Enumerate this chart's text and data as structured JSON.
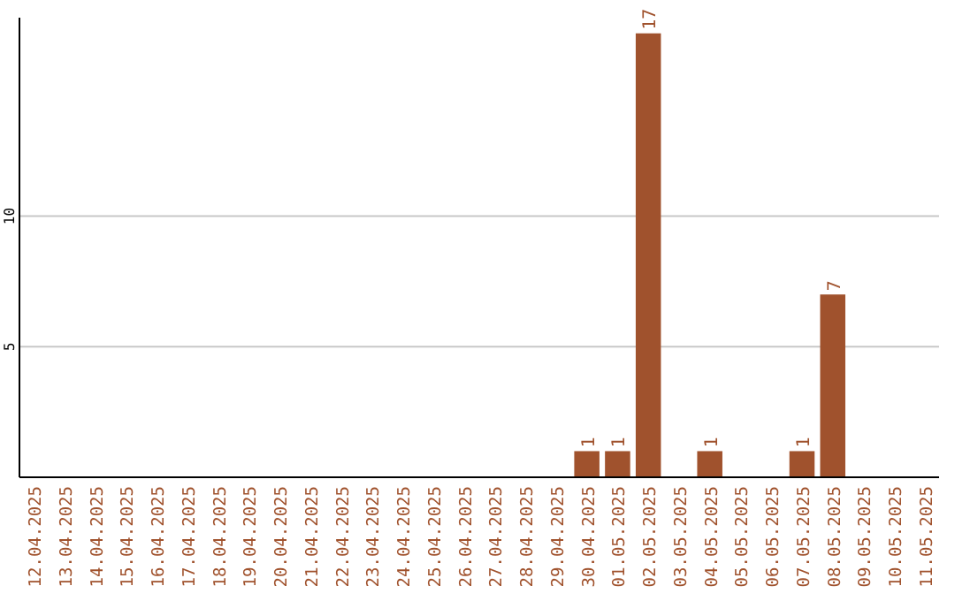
{
  "chart_data": {
    "type": "bar",
    "categories": [
      "12.04.2025",
      "13.04.2025",
      "14.04.2025",
      "15.04.2025",
      "16.04.2025",
      "17.04.2025",
      "18.04.2025",
      "19.04.2025",
      "20.04.2025",
      "21.04.2025",
      "22.04.2025",
      "23.04.2025",
      "24.04.2025",
      "25.04.2025",
      "26.04.2025",
      "27.04.2025",
      "28.04.2025",
      "29.04.2025",
      "30.04.2025",
      "01.05.2025",
      "02.05.2025",
      "03.05.2025",
      "04.05.2025",
      "05.05.2025",
      "06.05.2025",
      "07.05.2025",
      "08.05.2025",
      "09.05.2025",
      "10.05.2025",
      "11.05.2025"
    ],
    "values": [
      0,
      0,
      0,
      0,
      0,
      0,
      0,
      0,
      0,
      0,
      0,
      0,
      0,
      0,
      0,
      0,
      0,
      0,
      1,
      1,
      17,
      0,
      1,
      0,
      0,
      1,
      7,
      0,
      0,
      0
    ],
    "value_labels": [
      null,
      null,
      null,
      null,
      null,
      null,
      null,
      null,
      null,
      null,
      null,
      null,
      null,
      null,
      null,
      null,
      null,
      null,
      "1",
      "1",
      "17",
      null,
      "1",
      null,
      null,
      "1",
      "7",
      null,
      null,
      null
    ],
    "color": "#a0522d",
    "ylim": [
      0,
      17.6
    ],
    "yticks": [
      5,
      10
    ],
    "grid": "y"
  }
}
